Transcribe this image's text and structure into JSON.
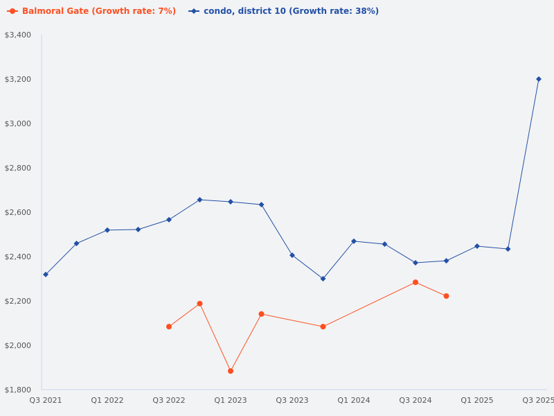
{
  "chart_data": {
    "type": "line",
    "categories": [
      "Q3 2021",
      "Q4 2021",
      "Q1 2022",
      "Q2 2022",
      "Q3 2022",
      "Q4 2022",
      "Q1 2023",
      "Q2 2023",
      "Q3 2023",
      "Q4 2023",
      "Q1 2024",
      "Q2 2024",
      "Q3 2024",
      "Q4 2024",
      "Q1 2025",
      "Q2 2025",
      "Q3 2025"
    ],
    "x_tick_labels": [
      "Q3 2021",
      "Q1 2022",
      "Q3 2022",
      "Q1 2023",
      "Q3 2023",
      "Q1 2024",
      "Q3 2024",
      "Q1 2025",
      "Q3 2025"
    ],
    "ylim": [
      1800,
      3400
    ],
    "y_ticks": [
      "$1,800",
      "$2,000",
      "$2,200",
      "$2,400",
      "$2,600",
      "$2,800",
      "$3,000",
      "$3,200",
      "$3,400"
    ],
    "y_tick_values": [
      1800,
      2000,
      2200,
      2400,
      2600,
      2800,
      3000,
      3200,
      3400
    ],
    "grid": false,
    "legend_position": "top-left",
    "series": [
      {
        "name": "Balmoral Gate (Growth rate: 7%)",
        "color": "#fc5022",
        "marker": "circle",
        "values": [
          null,
          null,
          null,
          null,
          2084,
          2188,
          1884,
          2141,
          null,
          2084,
          null,
          null,
          2284,
          2222,
          null,
          null,
          null
        ]
      },
      {
        "name": "condo, district 10 (Growth rate: 38%)",
        "color": "#2250a5",
        "marker": "diamond",
        "values": [
          2319,
          2459,
          2519,
          2522,
          2566,
          2656,
          2647,
          2634,
          2406,
          2300,
          2469,
          2456,
          2372,
          2381,
          2447,
          2434,
          3200
        ]
      }
    ]
  }
}
